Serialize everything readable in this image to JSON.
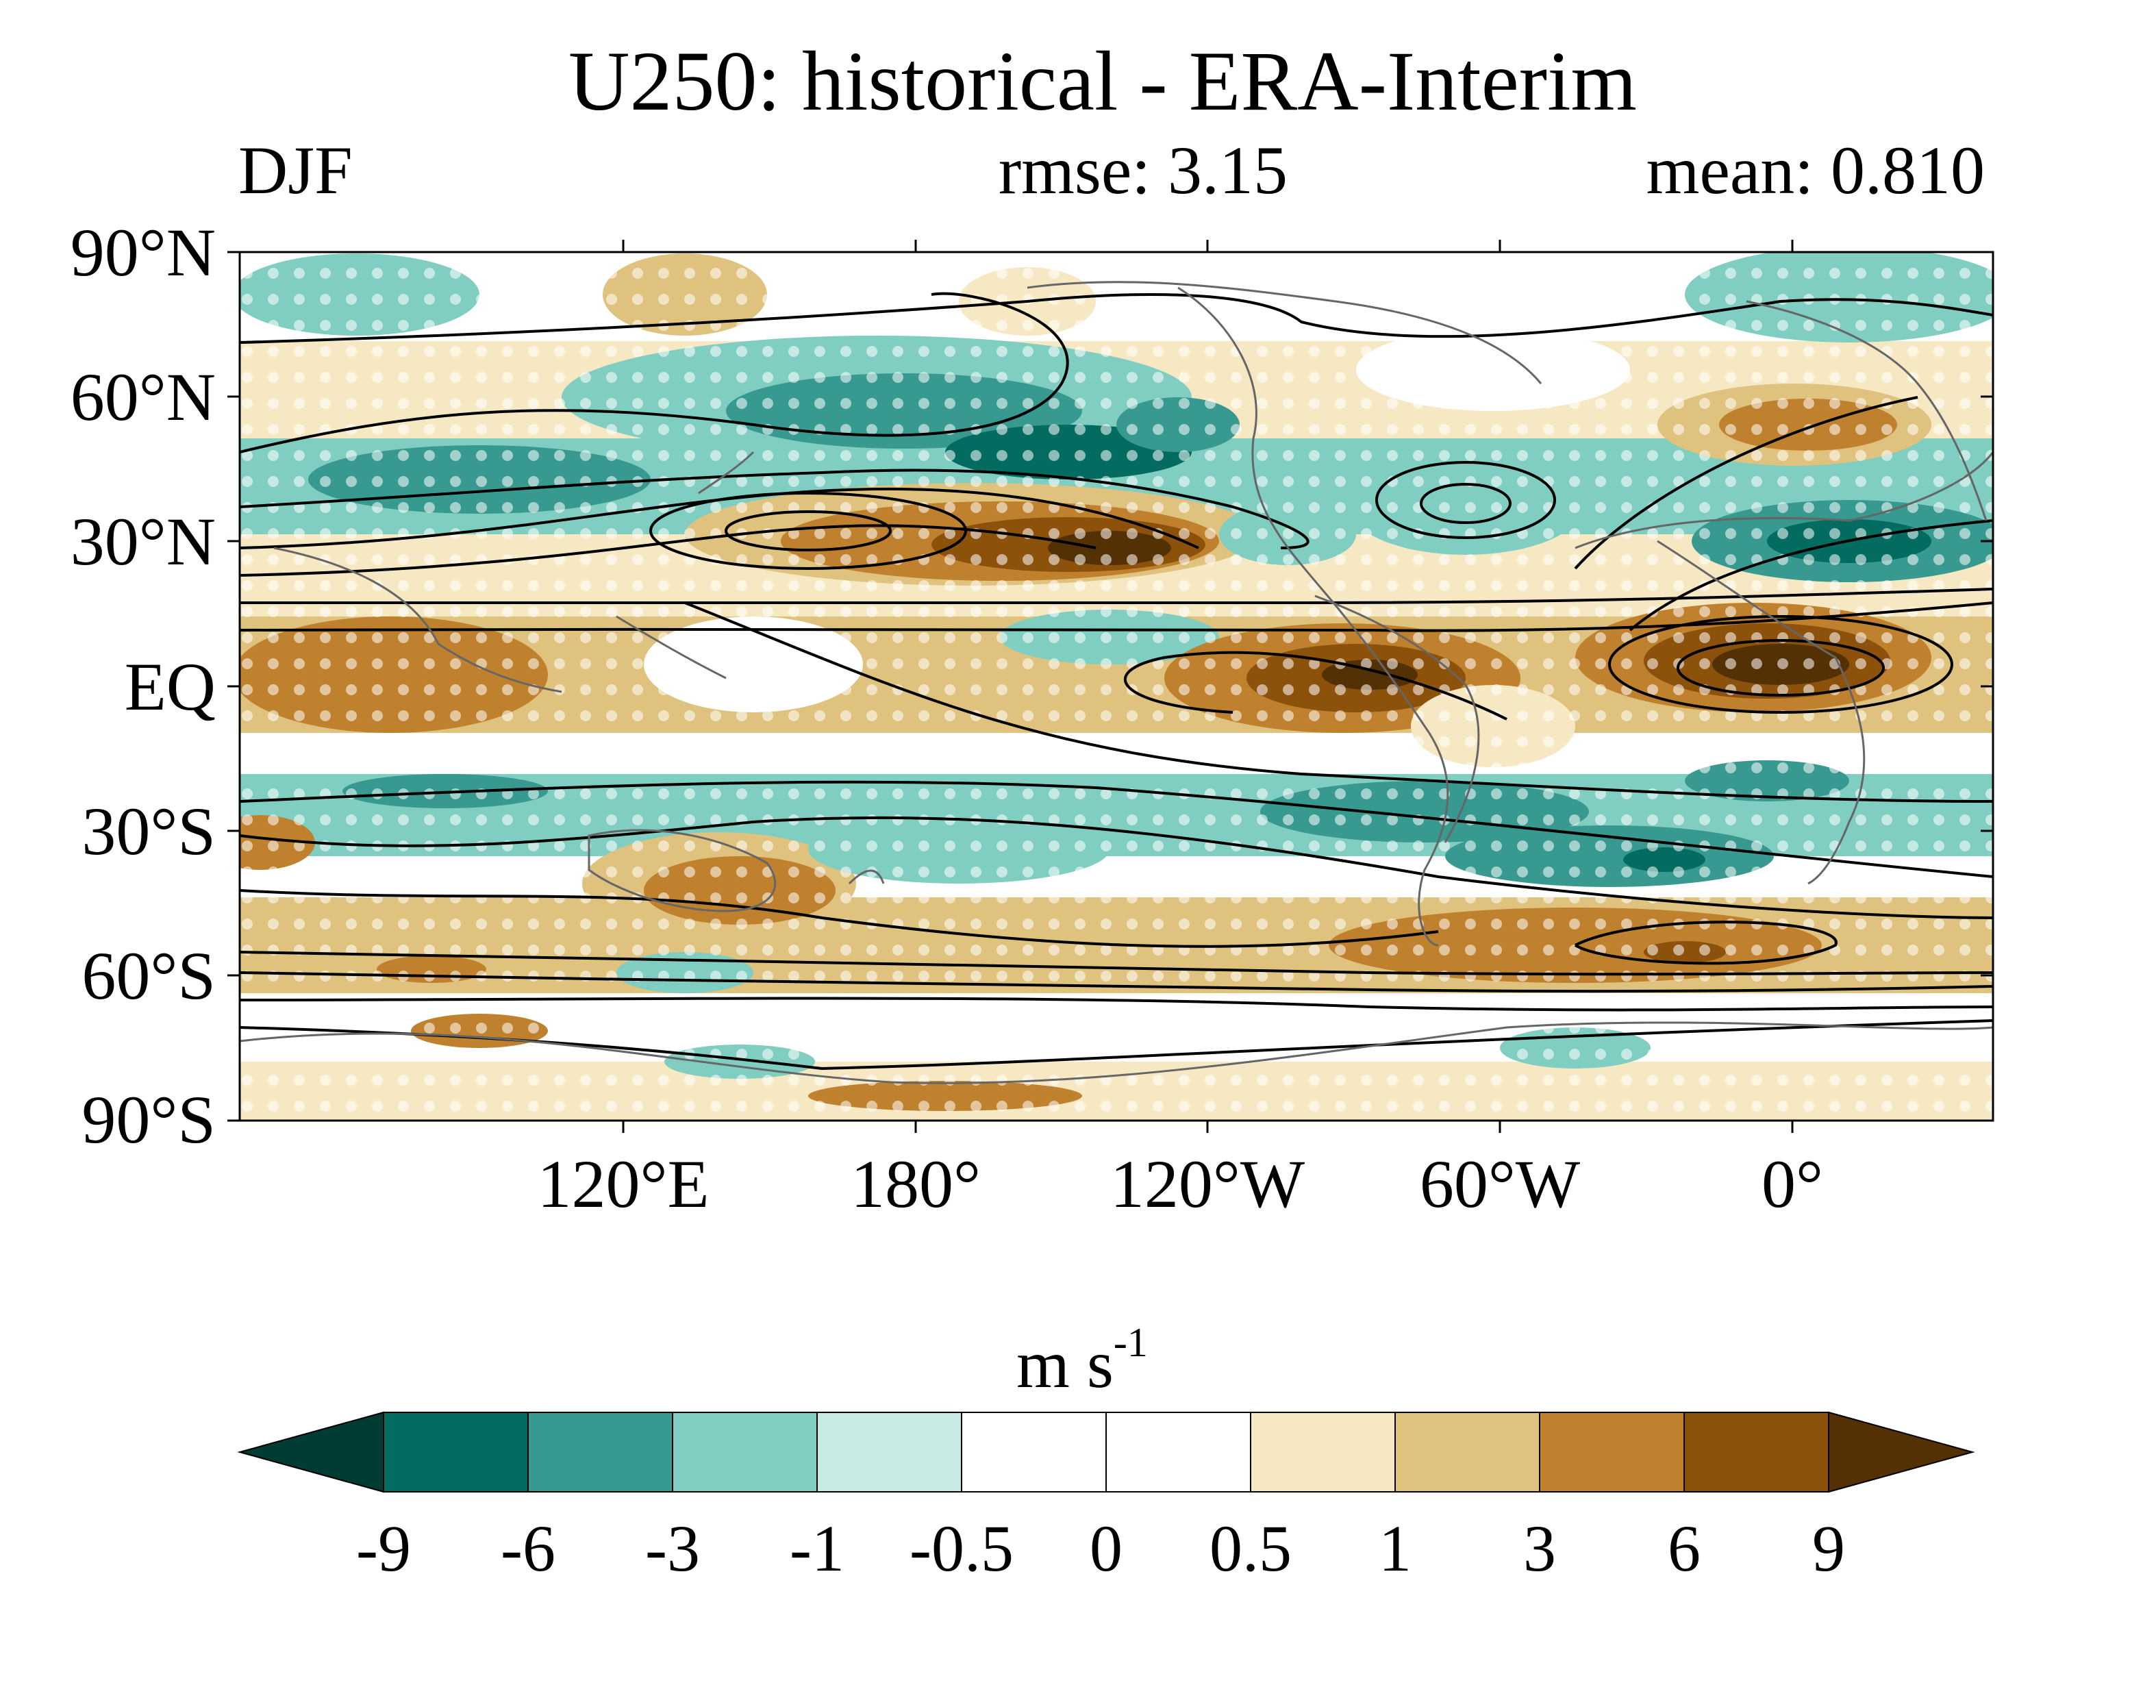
{
  "title": "U250: historical - ERA-Interim",
  "season": "DJF",
  "stats": {
    "rmse": "rmse: 3.15",
    "mean": "mean: 0.810"
  },
  "map": {
    "lon_range": [
      60,
      420
    ],
    "lat_range": [
      -90,
      90
    ],
    "lat_labels": [
      "90°N",
      "60°N",
      "30°N",
      "EQ",
      "30°S",
      "60°S",
      "90°S"
    ],
    "lon_labels": [
      "120°E",
      "180°",
      "120°W",
      "60°W",
      "0°"
    ],
    "lon_label_positions": [
      120,
      180,
      240,
      300,
      360
    ]
  },
  "colorbar": {
    "unit": "m s",
    "unit_exponent": "-1",
    "levels": [
      "-9",
      "-6",
      "-3",
      "-1",
      "-0.5",
      "0",
      "0.5",
      "1",
      "3",
      "6",
      "9"
    ],
    "colors": [
      "#013c34",
      "#036b60",
      "#37998f",
      "#80cdc1",
      "#c7eae5",
      "#ffffff",
      "#ffffff",
      "#f6e8c3",
      "#dfc27d",
      "#bf812d",
      "#8c510a",
      "#543005"
    ]
  }
}
